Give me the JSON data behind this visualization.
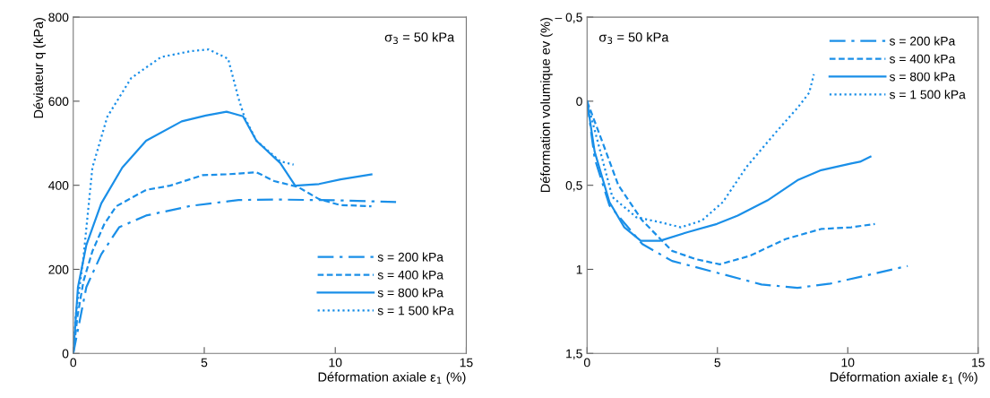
{
  "chart_data": [
    {
      "type": "line",
      "xlabel": "Déformation axiale ε$_{1}$ (%)",
      "ylabel": "Déviateur q (kPa)",
      "annotations": [
        "σ$_{3}$ = 50 kPa"
      ],
      "xlim": [
        0,
        15
      ],
      "xticks": [
        0,
        5,
        10,
        15
      ],
      "ylim": [
        0,
        800
      ],
      "yticks": [
        0,
        200,
        400,
        600,
        800
      ],
      "grid": false,
      "legend": "bottom right",
      "marker": "none",
      "series": [
        {
          "name": "s = 200 kPa",
          "color": "#1a8fe8",
          "line_style": "dashdot",
          "x": [
            0,
            0.5,
            1.07,
            1.75,
            2.78,
            4.49,
            6.31,
            7.9,
            10.18,
            12.32
          ],
          "values": [
            0,
            158,
            236,
            300,
            328,
            351,
            365,
            366,
            364,
            360
          ]
        },
        {
          "name": "s = 400 kPa",
          "color": "#1a8fe8",
          "line_style": "dashed",
          "x": [
            0,
            0.16,
            0.39,
            0.73,
            1.18,
            1.64,
            2.78,
            3.69,
            4.94,
            5.85,
            6.99,
            7.67,
            8.58,
            9.38,
            10.18,
            11.38
          ],
          "values": [
            0,
            88,
            172,
            243,
            307,
            350,
            389,
            399,
            424,
            426,
            431,
            410,
            396,
            367,
            353,
            350
          ]
        },
        {
          "name": "s = 800 kPa",
          "color": "#1a8fe8",
          "line_style": "solid",
          "x": [
            0,
            0.18,
            0.5,
            1.07,
            1.87,
            2.78,
            4.14,
            5.06,
            5.85,
            6.48,
            6.99,
            7.9,
            8.47,
            9.38,
            10.2,
            11.38
          ],
          "values": [
            0,
            158,
            258,
            357,
            442,
            506,
            552,
            566,
            575,
            564,
            506,
            453,
            399,
            403,
            414,
            426
          ]
        },
        {
          "name": "s = 1 500 kPa",
          "color": "#1a8fe8",
          "line_style": "dotted",
          "x": [
            0,
            0.09,
            0.39,
            0.73,
            1.3,
            2.21,
            3.35,
            4.49,
            5.17,
            5.91,
            6.31,
            6.53,
            6.99,
            7.9,
            8.41
          ],
          "values": [
            0,
            87,
            229,
            442,
            563,
            655,
            705,
            719,
            723,
            701,
            606,
            563,
            506,
            457,
            449
          ]
        }
      ]
    },
    {
      "type": "line",
      "xlabel": "Déformation axiale ε$_{1}$ (%)",
      "ylabel": "Déformation volumique ev (%)",
      "annotations": [
        "σ$_{3}$ = 50 kPa"
      ],
      "xlim": [
        0,
        15
      ],
      "xticks": [
        0,
        5,
        10,
        15
      ],
      "ylim": [
        1.5,
        -0.5
      ],
      "yticks": [
        {
          "value": -0.5,
          "label": "– 0,5"
        },
        0,
        {
          "value": 0.5,
          "label": "0,5"
        },
        1,
        {
          "value": 1.5,
          "label": "1,5"
        }
      ],
      "grid": false,
      "legend": "top right",
      "marker": "none",
      "series": [
        {
          "name": "s = 200 kPa",
          "color": "#1a8fe8",
          "line_style": "dashdot",
          "x": [
            0,
            0.29,
            0.86,
            2.12,
            3.26,
            4.98,
            6.69,
            8.07,
            9.33,
            12.3
          ],
          "values": [
            0,
            0.34,
            0.62,
            0.85,
            0.95,
            1.02,
            1.09,
            1.11,
            1.085,
            0.98
          ]
        },
        {
          "name": "s = 400 kPa",
          "color": "#1a8fe8",
          "line_style": "dashed",
          "x": [
            0,
            0.51,
            1.2,
            2.12,
            3.26,
            4.18,
            5.09,
            6.24,
            7.61,
            8.98,
            10.13,
            11.04
          ],
          "values": [
            0,
            0.21,
            0.5,
            0.71,
            0.89,
            0.94,
            0.97,
            0.92,
            0.82,
            0.76,
            0.75,
            0.73
          ]
        },
        {
          "name": "s = 800 kPa",
          "color": "#1a8fe8",
          "line_style": "solid",
          "x": [
            0,
            0.29,
            0.86,
            1.43,
            2.06,
            2.8,
            3.83,
            4.98,
            5.78,
            6.92,
            8.07,
            8.98,
            10.13,
            10.47,
            10.87
          ],
          "values": [
            0,
            0.3,
            0.6,
            0.75,
            0.83,
            0.83,
            0.78,
            0.73,
            0.68,
            0.59,
            0.47,
            0.41,
            0.37,
            0.36,
            0.33
          ]
        },
        {
          "name": "s = 1 500 kPa",
          "color": "#1a8fe8",
          "line_style": "dotted",
          "x": [
            0,
            0.51,
            0.97,
            1.89,
            2.8,
            3.6,
            4.4,
            5.21,
            6.12,
            7.27,
            8.07,
            8.52,
            8.7
          ],
          "values": [
            0,
            0.3,
            0.57,
            0.69,
            0.72,
            0.75,
            0.71,
            0.6,
            0.39,
            0.18,
            0.04,
            -0.05,
            -0.16
          ]
        }
      ]
    }
  ]
}
